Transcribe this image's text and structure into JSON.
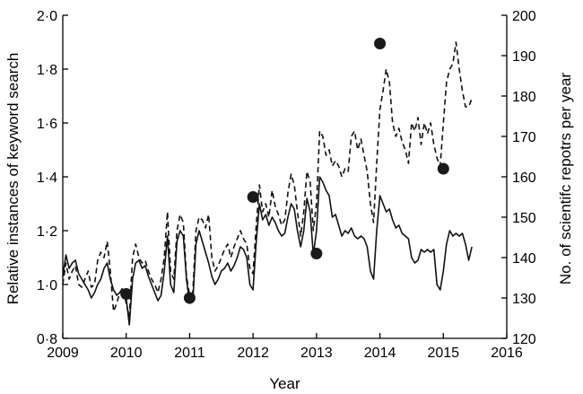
{
  "chart_data": {
    "type": "line",
    "xlabel": "Year",
    "ylabel_left": "Relative instances of keyword search",
    "ylabel_right": "No. of scientifc repotrs per year",
    "xlim": [
      2009,
      2016
    ],
    "ylim_left": [
      0.8,
      2.0
    ],
    "ylim_right": [
      120,
      200
    ],
    "x_ticks": [
      2009,
      2010,
      2011,
      2012,
      2013,
      2014,
      2015,
      2016
    ],
    "y_left_ticks": [
      0.8,
      1.0,
      1.2,
      1.4,
      1.6,
      1.8,
      2.0
    ],
    "y_left_tick_labels": [
      "0·8",
      "1·0",
      "1·2",
      "1·4",
      "1·6",
      "1·8",
      "2·0"
    ],
    "y_right_ticks": [
      120,
      130,
      140,
      150,
      160,
      170,
      180,
      190,
      200
    ],
    "grid": false,
    "legend": "none",
    "series": [
      {
        "style": "solid",
        "axis": "left",
        "x": [
          2009.0,
          2009.05,
          2009.1,
          2009.15,
          2009.2,
          2009.25,
          2009.3,
          2009.35,
          2009.4,
          2009.45,
          2009.5,
          2009.55,
          2009.6,
          2009.65,
          2009.7,
          2009.75,
          2009.8,
          2009.85,
          2009.9,
          2009.95,
          2010.0,
          2010.05,
          2010.1,
          2010.15,
          2010.2,
          2010.25,
          2010.3,
          2010.35,
          2010.4,
          2010.45,
          2010.5,
          2010.55,
          2010.6,
          2010.65,
          2010.7,
          2010.75,
          2010.8,
          2010.85,
          2010.9,
          2010.95,
          2011.0,
          2011.05,
          2011.1,
          2011.15,
          2011.2,
          2011.25,
          2011.3,
          2011.35,
          2011.4,
          2011.45,
          2011.5,
          2011.55,
          2011.6,
          2011.65,
          2011.7,
          2011.75,
          2011.8,
          2011.85,
          2011.9,
          2011.95,
          2012.0,
          2012.05,
          2012.1,
          2012.15,
          2012.2,
          2012.25,
          2012.3,
          2012.35,
          2012.4,
          2012.45,
          2012.5,
          2012.55,
          2012.6,
          2012.65,
          2012.7,
          2012.75,
          2012.8,
          2012.85,
          2012.9,
          2012.95,
          2013.0,
          2013.05,
          2013.1,
          2013.15,
          2013.2,
          2013.25,
          2013.3,
          2013.35,
          2013.4,
          2013.45,
          2013.5,
          2013.55,
          2013.6,
          2013.65,
          2013.7,
          2013.75,
          2013.8,
          2013.85,
          2013.9,
          2013.95,
          2014.0,
          2014.05,
          2014.1,
          2014.15,
          2014.2,
          2014.25,
          2014.3,
          2014.35,
          2014.4,
          2014.45,
          2014.5,
          2014.55,
          2014.6,
          2014.65,
          2014.7,
          2014.75,
          2014.8,
          2014.85,
          2014.9,
          2014.95,
          2015.0,
          2015.05,
          2015.1,
          2015.15,
          2015.2,
          2015.25,
          2015.3,
          2015.35,
          2015.4,
          2015.45
        ],
        "values": [
          1.03,
          1.11,
          1.06,
          1.08,
          1.09,
          1.04,
          1.02,
          1.0,
          0.98,
          0.95,
          0.97,
          1.0,
          1.02,
          1.06,
          1.08,
          1.02,
          0.98,
          0.96,
          0.97,
          0.98,
          0.95,
          0.85,
          1.02,
          1.08,
          1.09,
          1.06,
          1.07,
          1.03,
          1.0,
          0.97,
          0.94,
          0.96,
          1.05,
          1.18,
          1.0,
          0.97,
          1.16,
          1.2,
          1.18,
          1.02,
          0.93,
          0.94,
          1.15,
          1.2,
          1.16,
          1.12,
          1.08,
          1.03,
          1.0,
          1.02,
          1.05,
          1.06,
          1.08,
          1.05,
          1.07,
          1.1,
          1.14,
          1.13,
          1.1,
          1.0,
          0.98,
          1.16,
          1.3,
          1.24,
          1.26,
          1.22,
          1.25,
          1.23,
          1.2,
          1.18,
          1.19,
          1.25,
          1.3,
          1.28,
          1.2,
          1.14,
          1.2,
          1.32,
          1.27,
          1.11,
          1.2,
          1.4,
          1.38,
          1.35,
          1.33,
          1.25,
          1.26,
          1.22,
          1.18,
          1.2,
          1.19,
          1.21,
          1.18,
          1.17,
          1.18,
          1.17,
          1.14,
          1.05,
          1.02,
          1.2,
          1.33,
          1.3,
          1.27,
          1.28,
          1.24,
          1.21,
          1.22,
          1.19,
          1.18,
          1.17,
          1.1,
          1.08,
          1.09,
          1.13,
          1.12,
          1.13,
          1.12,
          1.13,
          1.0,
          0.98,
          1.05,
          1.15,
          1.2,
          1.18,
          1.19,
          1.18,
          1.19,
          1.15,
          1.09,
          1.14
        ]
      },
      {
        "style": "dashed",
        "axis": "left",
        "x": [
          2009.0,
          2009.05,
          2009.1,
          2009.15,
          2009.2,
          2009.25,
          2009.3,
          2009.35,
          2009.4,
          2009.45,
          2009.5,
          2009.55,
          2009.6,
          2009.65,
          2009.7,
          2009.75,
          2009.8,
          2009.85,
          2009.9,
          2009.95,
          2010.0,
          2010.05,
          2010.1,
          2010.15,
          2010.2,
          2010.25,
          2010.3,
          2010.35,
          2010.4,
          2010.45,
          2010.5,
          2010.55,
          2010.6,
          2010.65,
          2010.7,
          2010.75,
          2010.8,
          2010.85,
          2010.9,
          2010.95,
          2011.0,
          2011.05,
          2011.1,
          2011.15,
          2011.2,
          2011.25,
          2011.3,
          2011.35,
          2011.4,
          2011.45,
          2011.5,
          2011.55,
          2011.6,
          2011.65,
          2011.7,
          2011.75,
          2011.8,
          2011.85,
          2011.9,
          2011.95,
          2012.0,
          2012.05,
          2012.1,
          2012.15,
          2012.2,
          2012.25,
          2012.3,
          2012.35,
          2012.4,
          2012.45,
          2012.5,
          2012.55,
          2012.6,
          2012.65,
          2012.7,
          2012.75,
          2012.8,
          2012.85,
          2012.9,
          2012.95,
          2013.0,
          2013.05,
          2013.1,
          2013.15,
          2013.2,
          2013.25,
          2013.3,
          2013.35,
          2013.4,
          2013.45,
          2013.5,
          2013.55,
          2013.6,
          2013.65,
          2013.7,
          2013.75,
          2013.8,
          2013.85,
          2013.9,
          2013.95,
          2014.0,
          2014.05,
          2014.1,
          2014.15,
          2014.2,
          2014.25,
          2014.3,
          2014.35,
          2014.4,
          2014.45,
          2014.5,
          2014.55,
          2014.6,
          2014.65,
          2014.7,
          2014.75,
          2014.8,
          2014.85,
          2014.9,
          2014.95,
          2015.0,
          2015.05,
          2015.1,
          2015.15,
          2015.2,
          2015.25,
          2015.3,
          2015.35,
          2015.4,
          2015.45
        ],
        "values": [
          1.0,
          1.08,
          1.02,
          1.05,
          1.07,
          1.0,
          0.99,
          1.02,
          1.05,
          0.99,
          1.0,
          1.09,
          1.12,
          1.1,
          1.16,
          1.05,
          0.9,
          0.93,
          0.97,
          0.99,
          0.93,
          0.88,
          1.1,
          1.15,
          1.1,
          1.08,
          1.09,
          1.05,
          1.02,
          1.0,
          0.97,
          1.02,
          1.1,
          1.27,
          1.05,
          1.02,
          1.2,
          1.26,
          1.23,
          1.03,
          0.96,
          0.97,
          1.2,
          1.25,
          1.24,
          1.21,
          1.26,
          1.1,
          1.05,
          1.07,
          1.1,
          1.13,
          1.15,
          1.1,
          1.14,
          1.17,
          1.2,
          1.17,
          1.15,
          1.06,
          1.04,
          1.22,
          1.37,
          1.27,
          1.3,
          1.25,
          1.35,
          1.29,
          1.26,
          1.22,
          1.24,
          1.34,
          1.41,
          1.37,
          1.27,
          1.18,
          1.27,
          1.42,
          1.38,
          1.2,
          1.3,
          1.57,
          1.55,
          1.48,
          1.5,
          1.44,
          1.46,
          1.44,
          1.4,
          1.43,
          1.42,
          1.55,
          1.57,
          1.5,
          1.54,
          1.48,
          1.42,
          1.3,
          1.23,
          1.45,
          1.65,
          1.72,
          1.8,
          1.75,
          1.6,
          1.55,
          1.58,
          1.53,
          1.5,
          1.45,
          1.6,
          1.57,
          1.62,
          1.52,
          1.6,
          1.56,
          1.6,
          1.52,
          1.47,
          1.44,
          1.6,
          1.75,
          1.8,
          1.82,
          1.9,
          1.8,
          1.72,
          1.66,
          1.66,
          1.69
        ]
      },
      {
        "style": "markers",
        "axis": "right",
        "x": [
          2010,
          2011,
          2012,
          2013,
          2014,
          2015
        ],
        "values": [
          131,
          130,
          155,
          141,
          193,
          162
        ]
      }
    ]
  }
}
